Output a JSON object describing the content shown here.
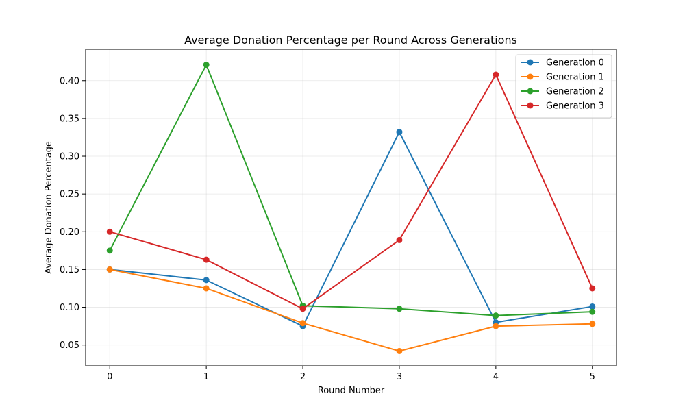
{
  "chart_data": {
    "type": "line",
    "title": "Average Donation Percentage per Round Across Generations",
    "xlabel": "Round Number",
    "ylabel": "Average Donation Percentage",
    "x": [
      0,
      1,
      2,
      3,
      4,
      5
    ],
    "xlim": [
      -0.25,
      5.25
    ],
    "ylim": [
      0.0225,
      0.4415
    ],
    "x_ticks": [
      "0",
      "1",
      "2",
      "3",
      "4",
      "5"
    ],
    "y_ticks": [
      "0.05",
      "0.10",
      "0.15",
      "0.20",
      "0.25",
      "0.30",
      "0.35",
      "0.40"
    ],
    "grid": true,
    "legend_position": "top-right",
    "series": [
      {
        "name": "Generation 0",
        "color": "#1f77b4",
        "values": [
          0.15,
          0.136,
          0.075,
          0.332,
          0.08,
          0.101
        ]
      },
      {
        "name": "Generation 1",
        "color": "#ff7f0e",
        "values": [
          0.15,
          0.125,
          0.079,
          0.042,
          0.075,
          0.078
        ]
      },
      {
        "name": "Generation 2",
        "color": "#2ca02c",
        "values": [
          0.175,
          0.421,
          0.102,
          0.098,
          0.089,
          0.094
        ]
      },
      {
        "name": "Generation 3",
        "color": "#d62728",
        "values": [
          0.2,
          0.163,
          0.098,
          0.189,
          0.408,
          0.125
        ]
      }
    ]
  }
}
